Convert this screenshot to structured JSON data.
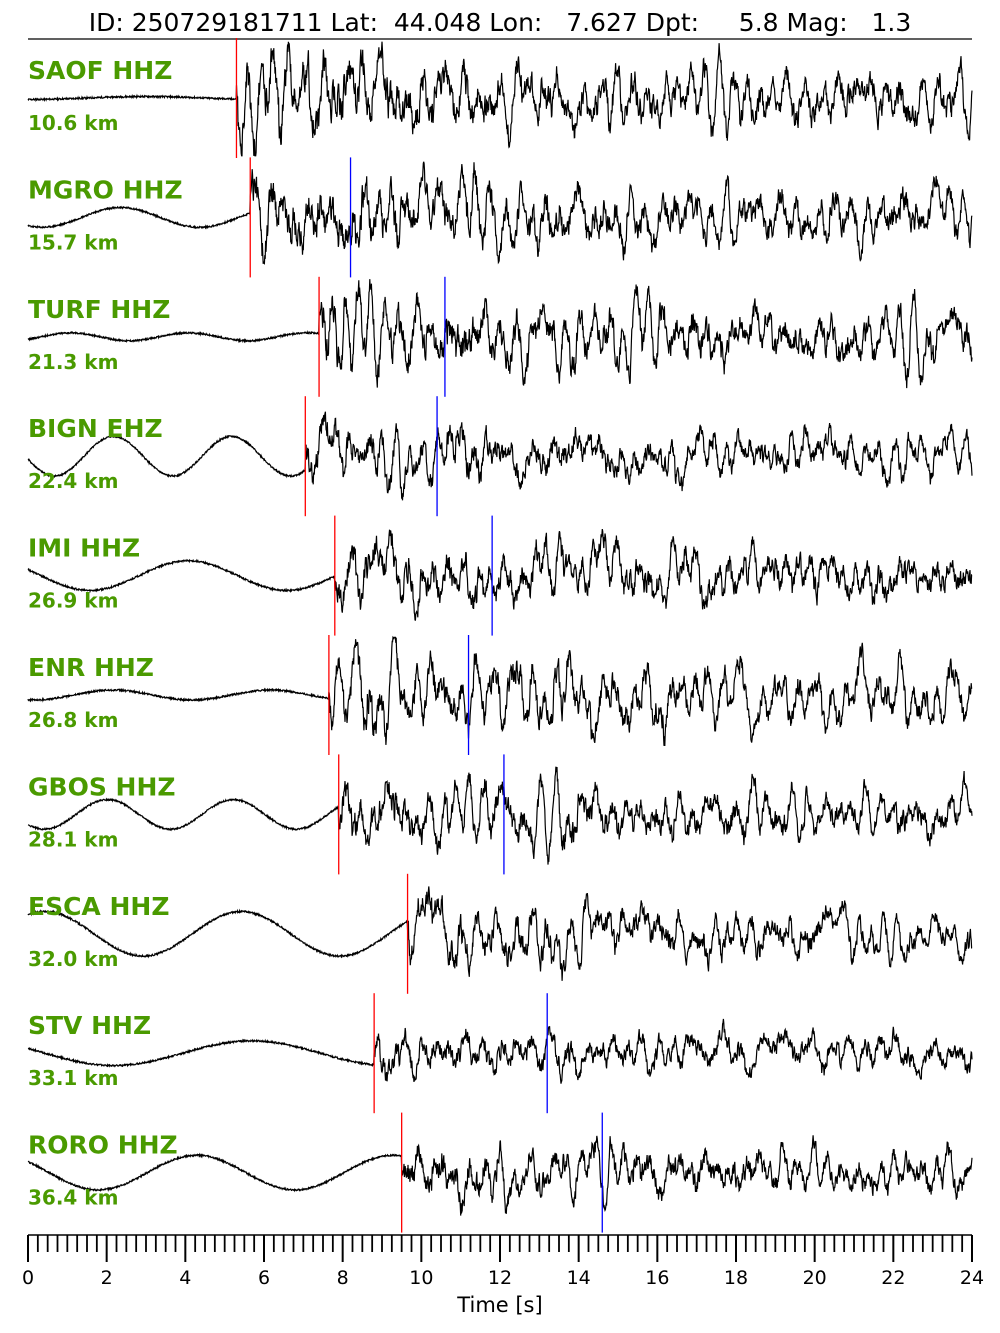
{
  "chart_data": {
    "type": "line",
    "title": "ID: 250729181711 Lat:  44.048 Lon:   7.627 Dpt:     5.8 Mag:   1.3",
    "event": {
      "id": "250729181711",
      "lat": "44.048",
      "lon": "7.627",
      "depth": "5.8",
      "mag": "1.3"
    },
    "xlabel": "Time [s]",
    "xlim": [
      0,
      24
    ],
    "xticks": [
      "0",
      "2",
      "4",
      "6",
      "8",
      "10",
      "12",
      "14",
      "16",
      "18",
      "20",
      "22",
      "24"
    ],
    "minor_tick_step": 0.25,
    "colors": {
      "label": "#4a9a00",
      "p_pick": "#ff0000",
      "s_pick": "#0000ff",
      "trace": "#000000"
    },
    "traces": [
      {
        "station": "SAOF HHZ",
        "distance": "10.6 km",
        "p_pick": 5.3,
        "s_pick": null,
        "pre_amp": 0.03,
        "post_amp": 0.9,
        "pre_period": 6,
        "seed": 11
      },
      {
        "station": "MGRO HHZ",
        "distance": "15.7 km",
        "p_pick": 5.65,
        "s_pick": 8.2,
        "pre_amp": 0.2,
        "post_amp": 0.75,
        "pre_period": 4,
        "seed": 23
      },
      {
        "station": "TURF HHZ",
        "distance": "21.3 km",
        "p_pick": 7.4,
        "s_pick": 10.6,
        "pre_amp": 0.08,
        "post_amp": 0.75,
        "pre_period": 3,
        "seed": 37
      },
      {
        "station": "BIGN EHZ",
        "distance": "22.4 km",
        "p_pick": 7.05,
        "s_pick": 10.4,
        "pre_amp": 0.4,
        "post_amp": 0.6,
        "pre_period": 3,
        "seed": 41
      },
      {
        "station": "IMI HHZ",
        "distance": "26.9 km",
        "p_pick": 7.8,
        "s_pick": 11.8,
        "pre_amp": 0.3,
        "post_amp": 0.65,
        "pre_period": 5,
        "seed": 53
      },
      {
        "station": "ENR HHZ",
        "distance": "26.8 km",
        "p_pick": 7.65,
        "s_pick": 11.2,
        "pre_amp": 0.1,
        "post_amp": 0.7,
        "pre_period": 4,
        "seed": 61
      },
      {
        "station": "GBOS HHZ",
        "distance": "28.1 km",
        "p_pick": 7.9,
        "s_pick": 12.1,
        "pre_amp": 0.3,
        "post_amp": 0.65,
        "pre_period": 3.2,
        "seed": 73
      },
      {
        "station": "ESCA HHZ",
        "distance": "32.0 km",
        "p_pick": 9.65,
        "s_pick": null,
        "pre_amp": 0.45,
        "post_amp": 0.65,
        "pre_period": 5,
        "seed": 89
      },
      {
        "station": "STV HHZ",
        "distance": "33.1 km",
        "p_pick": 8.8,
        "s_pick": 13.2,
        "pre_amp": 0.25,
        "post_amp": 0.5,
        "pre_period": 7,
        "seed": 97
      },
      {
        "station": "RORO HHZ",
        "distance": "36.4 km",
        "p_pick": 9.5,
        "s_pick": 14.6,
        "pre_amp": 0.35,
        "post_amp": 0.6,
        "pre_period": 5,
        "seed": 103
      }
    ]
  }
}
